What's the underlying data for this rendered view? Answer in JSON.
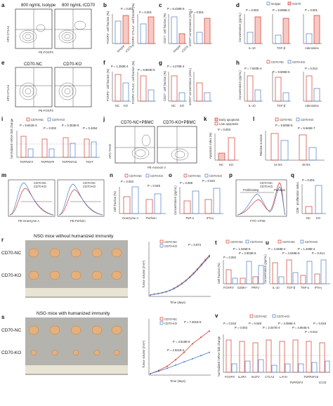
{
  "panels": {
    "a": {
      "letter": "a",
      "flow_titles": [
        "800 ng/mL Isotype",
        "800 ng/mL rCD70"
      ],
      "x_label": "PE-FOXP3",
      "y_label": "APC-CTLA4"
    },
    "b": {
      "letter": "b",
      "p": "P = 0.001",
      "y1": "FOXP3⁺ cell fraction (%)",
      "y2": "FOXP3⁺CTLA4⁺ cell fraction (%)",
      "cats": [
        "Isotype",
        "rCD70"
      ]
    },
    "c": {
      "letter": "c",
      "p1": "P = 6.439E-6",
      "p2": "P = 0.001",
      "y1": "CD27⁺ cell fraction (%)",
      "y2": "sCD27 concentration (U/mL)",
      "cats": [
        "Isotype",
        "rCD70"
      ]
    },
    "d": {
      "letter": "d",
      "legend": [
        "Isotype",
        "rCD70"
      ],
      "p1": "P = 0.003",
      "p2": "P = 6.596E-4",
      "p3": "P = 0.001",
      "y": "Concentration (pg/mL)",
      "cats": [
        "IL-10",
        "TGF-β",
        "Adenosine"
      ]
    },
    "e": {
      "letter": "e",
      "flow_titles": [
        "CD70-NC",
        "CD70-KO"
      ],
      "x_label": "PE-FOXP3",
      "y_label": "APC-CTLA4"
    },
    "f": {
      "letter": "f",
      "p1": "P = 1.283E-4",
      "p2": "P = 8.894E-6",
      "y1": "FOXP3⁺ cell fraction (%)",
      "y2": "FOXP3⁺CTLA4⁺ cell fraction (%)",
      "cats": [
        "NC",
        "KO"
      ]
    },
    "g": {
      "letter": "g",
      "p": "P = 4.276E-4",
      "y1": "CD27⁺ cell fraction (%)",
      "y2": "sCD27 concentration (U/mL)",
      "cats": [
        "NC",
        "KO"
      ]
    },
    "h": {
      "letter": "h",
      "legend": [
        "CD70-NC",
        "CD70-KO"
      ],
      "p1": "P = 7.620E-4",
      "p2": "P = 9.505E-5",
      "p3": "P = 0.012",
      "y": "Concentration (pg/mL)",
      "cats": [
        "IL-10",
        "TGF-β",
        "Adenosine"
      ]
    },
    "i": {
      "letter": "i",
      "legend": [
        "CD70-NC",
        "CD70-KO"
      ],
      "p1": "P = 8.842E-4",
      "p2": "P = 0.002",
      "p3": "P = 0.363E-6",
      "p4": "P = 0.4264",
      "y": "Normalized mRNA fold change",
      "cats": [
        "TNFRSF4",
        "TNFRSF9",
        "TNFRSF18",
        "TIGIT"
      ]
    },
    "j": {
      "letter": "j",
      "flow_titles": [
        "CD70-NC+PBMC",
        "CD70-KO+PBMC"
      ],
      "x_label": "PE-Annexin V",
      "y_label": "APC-7AAD"
    },
    "k": {
      "letter": "k",
      "legend": [
        "Early apoptosis",
        "Late apoptosis"
      ],
      "p": "P = 0.003",
      "y": "Apoptosis index (%)",
      "cats": [
        "NC",
        "KO"
      ]
    },
    "l": {
      "letter": "l",
      "legend": [
        "CD70-NC",
        "CD70-KO"
      ],
      "p1": "P = 9.505E-5",
      "p2": "P = 5.546E-7",
      "y": "Relative survival",
      "cats": [
        "24 hrs",
        "48 hrs"
      ]
    },
    "m": {
      "letter": "m",
      "legend": [
        "CD70-NC",
        "CD70-KO"
      ],
      "x1": "PE-Granzyme A",
      "x2": "PE-Perforin"
    },
    "n": {
      "letter": "n",
      "legend": [
        "CD70-NC",
        "CD70-KO"
      ],
      "p1": "P = 0.003",
      "p2": "P = 0.045",
      "y": "Cell fraction (%)",
      "cats": [
        "Granzyme A",
        "Perforin"
      ]
    },
    "o": {
      "letter": "o",
      "legend": [
        "CD70-NC",
        "CD70-KO"
      ],
      "p1": "P = 0.008",
      "p2": "P = 0.034",
      "y": "Concentration (pg/mL)",
      "cats": [
        "TNF-α",
        "IFN-γ"
      ]
    },
    "p": {
      "letter": "p",
      "legend": [
        "CD70-NC",
        "CD70-KO"
      ],
      "x": "FITC-CFSE",
      "labels": [
        "Proliferating",
        "Parental"
      ]
    },
    "q": {
      "letter": "q",
      "p": "P = 0.001",
      "y": "CD8⁺ proliferation index",
      "cats": [
        "NC",
        "KO"
      ]
    },
    "r": {
      "letter": "r",
      "title": "NSG mice without humanized immunity",
      "rows": [
        "CD70-NC",
        "CD70-KO"
      ]
    },
    "r_curve": {
      "legend": [
        "CD70-NC",
        "CD70-KO"
      ],
      "p": "P = 0.873",
      "x": "Time (days)",
      "y": "Tumor volume (mm³)"
    },
    "s": {
      "letter": "s",
      "title": "NSG mice with humanized immunity",
      "rows": [
        "CD70-NC",
        "CD70-KO"
      ]
    },
    "s_curve": {
      "legend": [
        "CD70-NC",
        "CD70-KO"
      ],
      "p1": "P = 7.261E-5",
      "p2": "P = 3.518E-6",
      "p3": "P = 2.621E-4",
      "x": "Time (days)",
      "y": "Tumor volume (mm³)"
    },
    "t": {
      "letter": "t",
      "legend": [
        "CD70-NC",
        "CD70-KO"
      ],
      "p1": "P = 1.025E-6",
      "p2": "P = 2.903E-5",
      "p3": "P = 0.002",
      "y": "Cell fraction (%)",
      "cats": [
        "FOXP3⁺",
        "GZMA⁺",
        "PRF1⁺"
      ]
    },
    "u": {
      "letter": "u",
      "legend": [
        "CD70-NC",
        "CD70-KO"
      ],
      "p1": "P = 4.348E-4",
      "p2": "P = 4.049E-5",
      "p3": "P = 1.248E-4",
      "p4": "P = 0.014",
      "y": "Concentration (pg/mL)",
      "cats": [
        "IL-10",
        "TGF-β",
        "TNF-α",
        "IFN-γ"
      ]
    },
    "v": {
      "letter": "v",
      "legend": [
        "CD70-NC",
        "CD70-KO"
      ],
      "pvals": [
        "P = 0.018",
        "P = 0.003",
        "P = 0.049",
        "P = 2.047E-4",
        "P = 3.056E-4",
        "P = 4.864E-4",
        "P = 0.012",
        "P = 0.018"
      ],
      "y": "Normalized mRNA fold change",
      "cats": [
        "FOXP3",
        "IL2RA",
        "IKZF2",
        "CTLA4",
        "LAYN",
        "TNFRSF4",
        "TNFRSF18",
        "ICOS"
      ]
    }
  },
  "chart_data": [
    {
      "type": "line",
      "id": "r_curve",
      "x": [
        0,
        1,
        2,
        3,
        4,
        5,
        6,
        7,
        8,
        9,
        10,
        11,
        12,
        13,
        14,
        15
      ],
      "series": [
        {
          "name": "CD70-NC",
          "values": [
            0,
            40,
            70,
            110,
            160,
            230,
            320,
            430,
            560,
            700,
            870,
            1060,
            1260,
            1480,
            1700,
            1900
          ]
        },
        {
          "name": "CD70-KO",
          "values": [
            0,
            40,
            65,
            105,
            150,
            220,
            300,
            410,
            530,
            680,
            840,
            1020,
            1220,
            1430,
            1650,
            1850
          ]
        }
      ],
      "xlabel": "Time (days)",
      "ylabel": "Tumor volume (mm³)",
      "ylim": [
        0,
        2500
      ]
    },
    {
      "type": "line",
      "id": "s_curve",
      "x": [
        0,
        3,
        6,
        9,
        12,
        15,
        18,
        21
      ],
      "series": [
        {
          "name": "CD70-NC",
          "values": [
            0,
            150,
            350,
            650,
            1000,
            1400,
            1700,
            2000
          ]
        },
        {
          "name": "CD70-KO",
          "values": [
            0,
            120,
            250,
            400,
            550,
            700,
            850,
            1000
          ]
        }
      ],
      "xlabel": "Time (days)",
      "ylabel": "Tumor volume (mm³)",
      "ylim": [
        0,
        2500
      ]
    }
  ],
  "colors": {
    "nc": "#4a7cc7",
    "ko": "#d23a2e",
    "pink": "#f8c9c3",
    "photo": "#b5b3ad",
    "tumor": "#e6b07c"
  }
}
